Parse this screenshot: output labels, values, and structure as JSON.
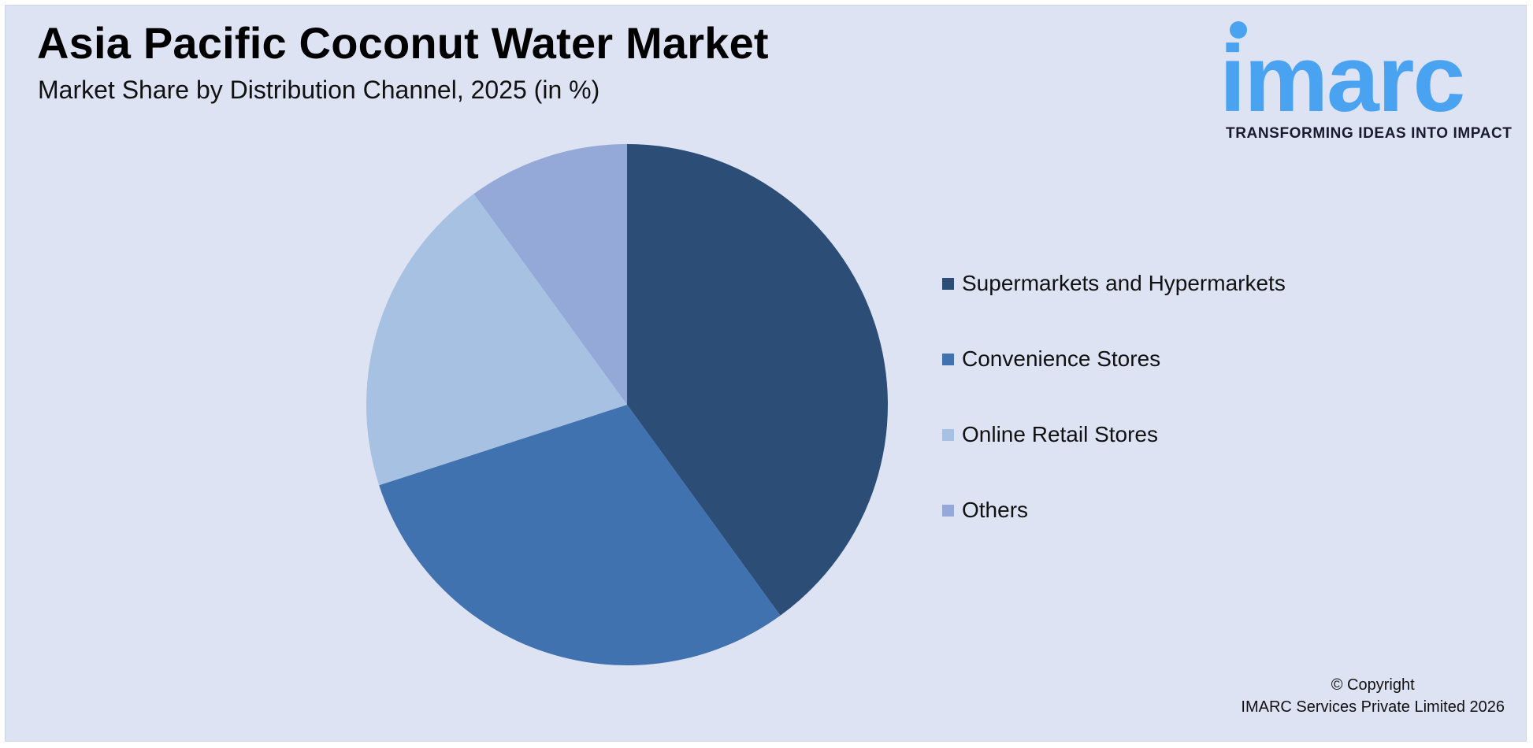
{
  "header": {
    "title": "Asia Pacific Coconut Water Market",
    "subtitle": "Market Share by Distribution Channel, 2025 (in %)"
  },
  "logo": {
    "wordmark": "imarc",
    "tagline": "TRANSFORMING IDEAS INTO IMPACT",
    "color": "#4aa3f0"
  },
  "chart_data": {
    "type": "pie",
    "title": "Asia Pacific Coconut Water Market",
    "subtitle": "Market Share by Distribution Channel, 2025 (in %)",
    "legend_position": "right",
    "start_angle": "12 o'clock, clockwise",
    "slices": [
      {
        "label": "Supermarkets and Hypermarkets",
        "value": 40,
        "color": "#2b4d76"
      },
      {
        "label": "Convenience Stores",
        "value": 30,
        "color": "#4172b0"
      },
      {
        "label": "Online Retail Stores",
        "value": 20,
        "color": "#a6c1e2"
      },
      {
        "label": "Others",
        "value": 10,
        "color": "#94a9d8"
      }
    ]
  },
  "footer": {
    "copyright_line1": "© Copyright",
    "copyright_line2": "IMARC Services Private Limited 2026"
  }
}
